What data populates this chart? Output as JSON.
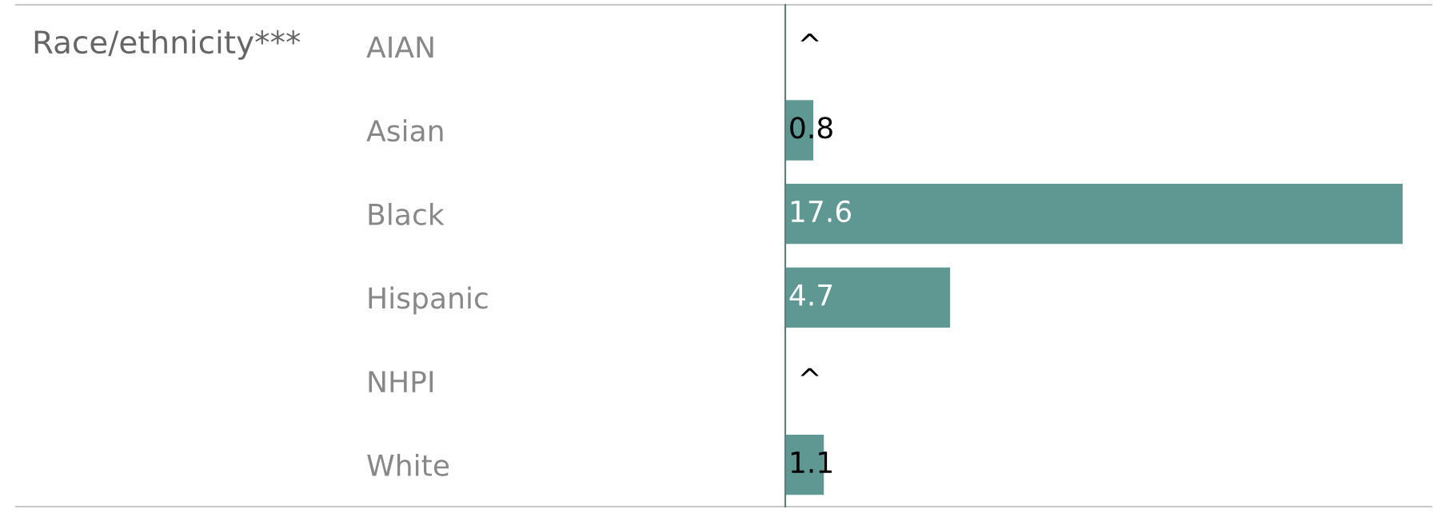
{
  "chart_data": {
    "type": "bar",
    "orientation": "horizontal",
    "ylabel": "Race/ethnicity***",
    "categories": [
      "AIAN",
      "Asian",
      "Black",
      "Hispanic",
      "NHPI",
      "White"
    ],
    "values": [
      null,
      0.8,
      17.6,
      4.7,
      null,
      1.1
    ],
    "value_labels": [
      "^",
      "0.8",
      "17.6",
      "4.7",
      "^",
      "1.1"
    ],
    "color": "#5f9893",
    "grid": false,
    "legend": false
  }
}
